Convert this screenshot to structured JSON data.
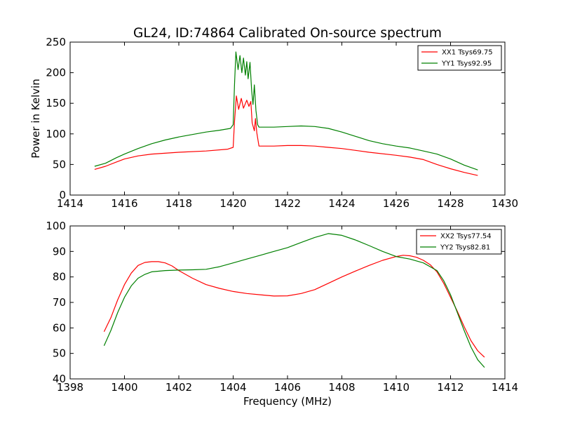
{
  "figure": {
    "title": "GL24, ID:74864 Calibrated On-source spectrum",
    "ylabel": "Power in Kelvin",
    "xlabel": "Frequency (MHz)"
  },
  "chart_data": [
    {
      "type": "line",
      "xlim": [
        1414,
        1430
      ],
      "ylim": [
        0,
        250
      ],
      "xticks": [
        "1414",
        "1416",
        "1418",
        "1420",
        "1422",
        "1424",
        "1426",
        "1428",
        "1430"
      ],
      "yticks": [
        "0",
        "50",
        "100",
        "150",
        "200",
        "250"
      ],
      "legend_position": "top-right",
      "series": [
        {
          "name": "XX1 Tsys69.75",
          "color": "#ff0000",
          "points": [
            [
              1414.9,
              42
            ],
            [
              1415.3,
              47
            ],
            [
              1415.7,
              54
            ],
            [
              1416.0,
              59
            ],
            [
              1416.5,
              64
            ],
            [
              1417.0,
              67
            ],
            [
              1418.0,
              70
            ],
            [
              1419.0,
              72
            ],
            [
              1419.8,
              75
            ],
            [
              1420.0,
              78
            ],
            [
              1420.05,
              120
            ],
            [
              1420.12,
              162
            ],
            [
              1420.2,
              140
            ],
            [
              1420.3,
              158
            ],
            [
              1420.38,
              142
            ],
            [
              1420.5,
              155
            ],
            [
              1420.58,
              145
            ],
            [
              1420.65,
              153
            ],
            [
              1420.7,
              118
            ],
            [
              1420.78,
              105
            ],
            [
              1420.82,
              125
            ],
            [
              1420.87,
              102
            ],
            [
              1420.95,
              80
            ],
            [
              1421.5,
              80
            ],
            [
              1422.0,
              81
            ],
            [
              1422.5,
              81
            ],
            [
              1423.0,
              80
            ],
            [
              1423.5,
              78
            ],
            [
              1424.0,
              76
            ],
            [
              1424.5,
              73
            ],
            [
              1425.0,
              70
            ],
            [
              1426.0,
              65
            ],
            [
              1426.5,
              62
            ],
            [
              1427.0,
              58
            ],
            [
              1427.5,
              50
            ],
            [
              1428.0,
              43
            ],
            [
              1428.5,
              37
            ],
            [
              1429.0,
              32
            ]
          ]
        },
        {
          "name": "YY1 Tsys92.95",
          "color": "#008000",
          "points": [
            [
              1414.9,
              47
            ],
            [
              1415.3,
              52
            ],
            [
              1415.7,
              61
            ],
            [
              1416.0,
              67
            ],
            [
              1416.5,
              76
            ],
            [
              1417.0,
              84
            ],
            [
              1417.5,
              90
            ],
            [
              1418.0,
              95
            ],
            [
              1418.5,
              99
            ],
            [
              1419.0,
              103
            ],
            [
              1419.5,
              106
            ],
            [
              1419.9,
              109
            ],
            [
              1420.0,
              115
            ],
            [
              1420.05,
              180
            ],
            [
              1420.1,
              234
            ],
            [
              1420.18,
              205
            ],
            [
              1420.25,
              228
            ],
            [
              1420.32,
              200
            ],
            [
              1420.38,
              224
            ],
            [
              1420.45,
              196
            ],
            [
              1420.5,
              218
            ],
            [
              1420.55,
              190
            ],
            [
              1420.62,
              217
            ],
            [
              1420.68,
              170
            ],
            [
              1420.73,
              148
            ],
            [
              1420.78,
              180
            ],
            [
              1420.84,
              138
            ],
            [
              1420.9,
              115
            ],
            [
              1420.95,
              111
            ],
            [
              1421.5,
              111
            ],
            [
              1422.0,
              112
            ],
            [
              1422.5,
              113
            ],
            [
              1423.0,
              112
            ],
            [
              1423.5,
              109
            ],
            [
              1424.0,
              103
            ],
            [
              1424.5,
              96
            ],
            [
              1425.0,
              89
            ],
            [
              1425.5,
              84
            ],
            [
              1426.0,
              80
            ],
            [
              1426.5,
              77
            ],
            [
              1427.0,
              72
            ],
            [
              1427.5,
              67
            ],
            [
              1428.0,
              59
            ],
            [
              1428.5,
              49
            ],
            [
              1429.0,
              41
            ]
          ]
        }
      ]
    },
    {
      "type": "line",
      "xlim": [
        1398,
        1414
      ],
      "ylim": [
        40,
        100
      ],
      "xticks": [
        "1398",
        "1400",
        "1402",
        "1404",
        "1406",
        "1408",
        "1410",
        "1412",
        "1414"
      ],
      "yticks": [
        "40",
        "50",
        "60",
        "70",
        "80",
        "90",
        "100"
      ],
      "legend_position": "top-right",
      "series": [
        {
          "name": "XX2 Tsys77.54",
          "color": "#ff0000",
          "points": [
            [
              1399.25,
              58.5
            ],
            [
              1399.5,
              64
            ],
            [
              1399.75,
              71
            ],
            [
              1400.0,
              77
            ],
            [
              1400.25,
              81.5
            ],
            [
              1400.5,
              84.5
            ],
            [
              1400.75,
              85.7
            ],
            [
              1401.0,
              86
            ],
            [
              1401.25,
              86
            ],
            [
              1401.5,
              85.5
            ],
            [
              1401.75,
              84.3
            ],
            [
              1402.0,
              82.5
            ],
            [
              1402.5,
              79.5
            ],
            [
              1403.0,
              77
            ],
            [
              1403.5,
              75.5
            ],
            [
              1404.0,
              74.3
            ],
            [
              1404.5,
              73.5
            ],
            [
              1405.0,
              73
            ],
            [
              1405.5,
              72.5
            ],
            [
              1406.0,
              72.6
            ],
            [
              1406.5,
              73.5
            ],
            [
              1407.0,
              75
            ],
            [
              1407.5,
              77.5
            ],
            [
              1408.0,
              80
            ],
            [
              1408.5,
              82.3
            ],
            [
              1409.0,
              84.5
            ],
            [
              1409.5,
              86.5
            ],
            [
              1410.0,
              88
            ],
            [
              1410.25,
              88.5
            ],
            [
              1410.5,
              88.3
            ],
            [
              1410.75,
              87.7
            ],
            [
              1411.0,
              86.5
            ],
            [
              1411.25,
              84.8
            ],
            [
              1411.5,
              82
            ],
            [
              1411.75,
              77.5
            ],
            [
              1412.0,
              72
            ],
            [
              1412.25,
              66.5
            ],
            [
              1412.5,
              60.5
            ],
            [
              1412.75,
              55
            ],
            [
              1413.0,
              51
            ],
            [
              1413.25,
              48.5
            ]
          ]
        },
        {
          "name": "YY2 Tsys82.81",
          "color": "#008000",
          "points": [
            [
              1399.25,
              53
            ],
            [
              1399.5,
              59
            ],
            [
              1399.75,
              66
            ],
            [
              1400.0,
              72
            ],
            [
              1400.25,
              76.5
            ],
            [
              1400.5,
              79.5
            ],
            [
              1400.75,
              81
            ],
            [
              1401.0,
              82
            ],
            [
              1401.5,
              82.5
            ],
            [
              1402.0,
              82.7
            ],
            [
              1402.5,
              82.8
            ],
            [
              1403.0,
              83
            ],
            [
              1403.5,
              84
            ],
            [
              1404.0,
              85.5
            ],
            [
              1404.5,
              87
            ],
            [
              1405.0,
              88.5
            ],
            [
              1405.5,
              90
            ],
            [
              1406.0,
              91.5
            ],
            [
              1406.5,
              93.5
            ],
            [
              1407.0,
              95.5
            ],
            [
              1407.5,
              97
            ],
            [
              1408.0,
              96.3
            ],
            [
              1408.5,
              94.5
            ],
            [
              1409.0,
              92.3
            ],
            [
              1409.5,
              90
            ],
            [
              1410.0,
              88
            ],
            [
              1410.5,
              87
            ],
            [
              1411.0,
              85.5
            ],
            [
              1411.5,
              82.5
            ],
            [
              1411.75,
              78.5
            ],
            [
              1412.0,
              73
            ],
            [
              1412.25,
              66
            ],
            [
              1412.5,
              59
            ],
            [
              1412.75,
              52.5
            ],
            [
              1413.0,
              47.5
            ],
            [
              1413.25,
              44.5
            ]
          ]
        }
      ]
    }
  ]
}
